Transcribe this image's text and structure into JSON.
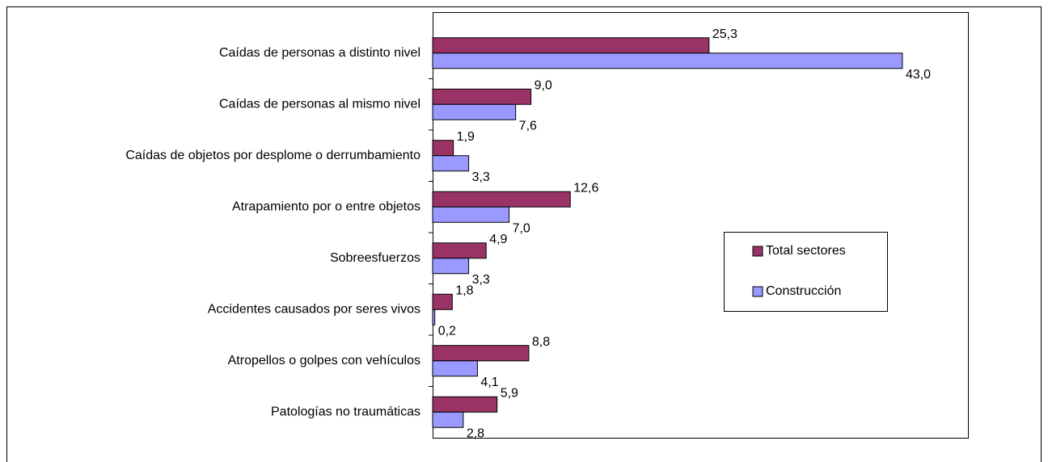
{
  "chart_data": {
    "type": "bar",
    "orientation": "horizontal",
    "categories": [
      "Caídas de personas a distinto nivel",
      "Caídas de personas al mismo nivel",
      "Caídas de objetos por desplome o derrumbamiento",
      "Atrapamiento por o entre objetos",
      "Sobreesfuerzos",
      "Accidentes causados por seres vivos",
      "Atropellos o golpes con vehículos",
      "Patologías no traumáticas"
    ],
    "series": [
      {
        "name": "Total sectores",
        "color": "#993366",
        "values": [
          25.3,
          9.0,
          1.9,
          12.6,
          4.9,
          1.8,
          8.8,
          5.9
        ],
        "value_labels": [
          "25,3",
          "9,0",
          "1,9",
          "12,6",
          "4,9",
          "1,8",
          "8,8",
          "5,9"
        ]
      },
      {
        "name": "Construcción",
        "color": "#9999ff",
        "values": [
          43.0,
          7.6,
          3.3,
          7.0,
          3.3,
          0.2,
          4.1,
          2.8
        ],
        "value_labels": [
          "43,0",
          "7,6",
          "3,3",
          "7,0",
          "3,3",
          "0,2",
          "4,1",
          "2,8"
        ]
      }
    ],
    "xlim": [
      0,
      49
    ],
    "legend": "right"
  }
}
